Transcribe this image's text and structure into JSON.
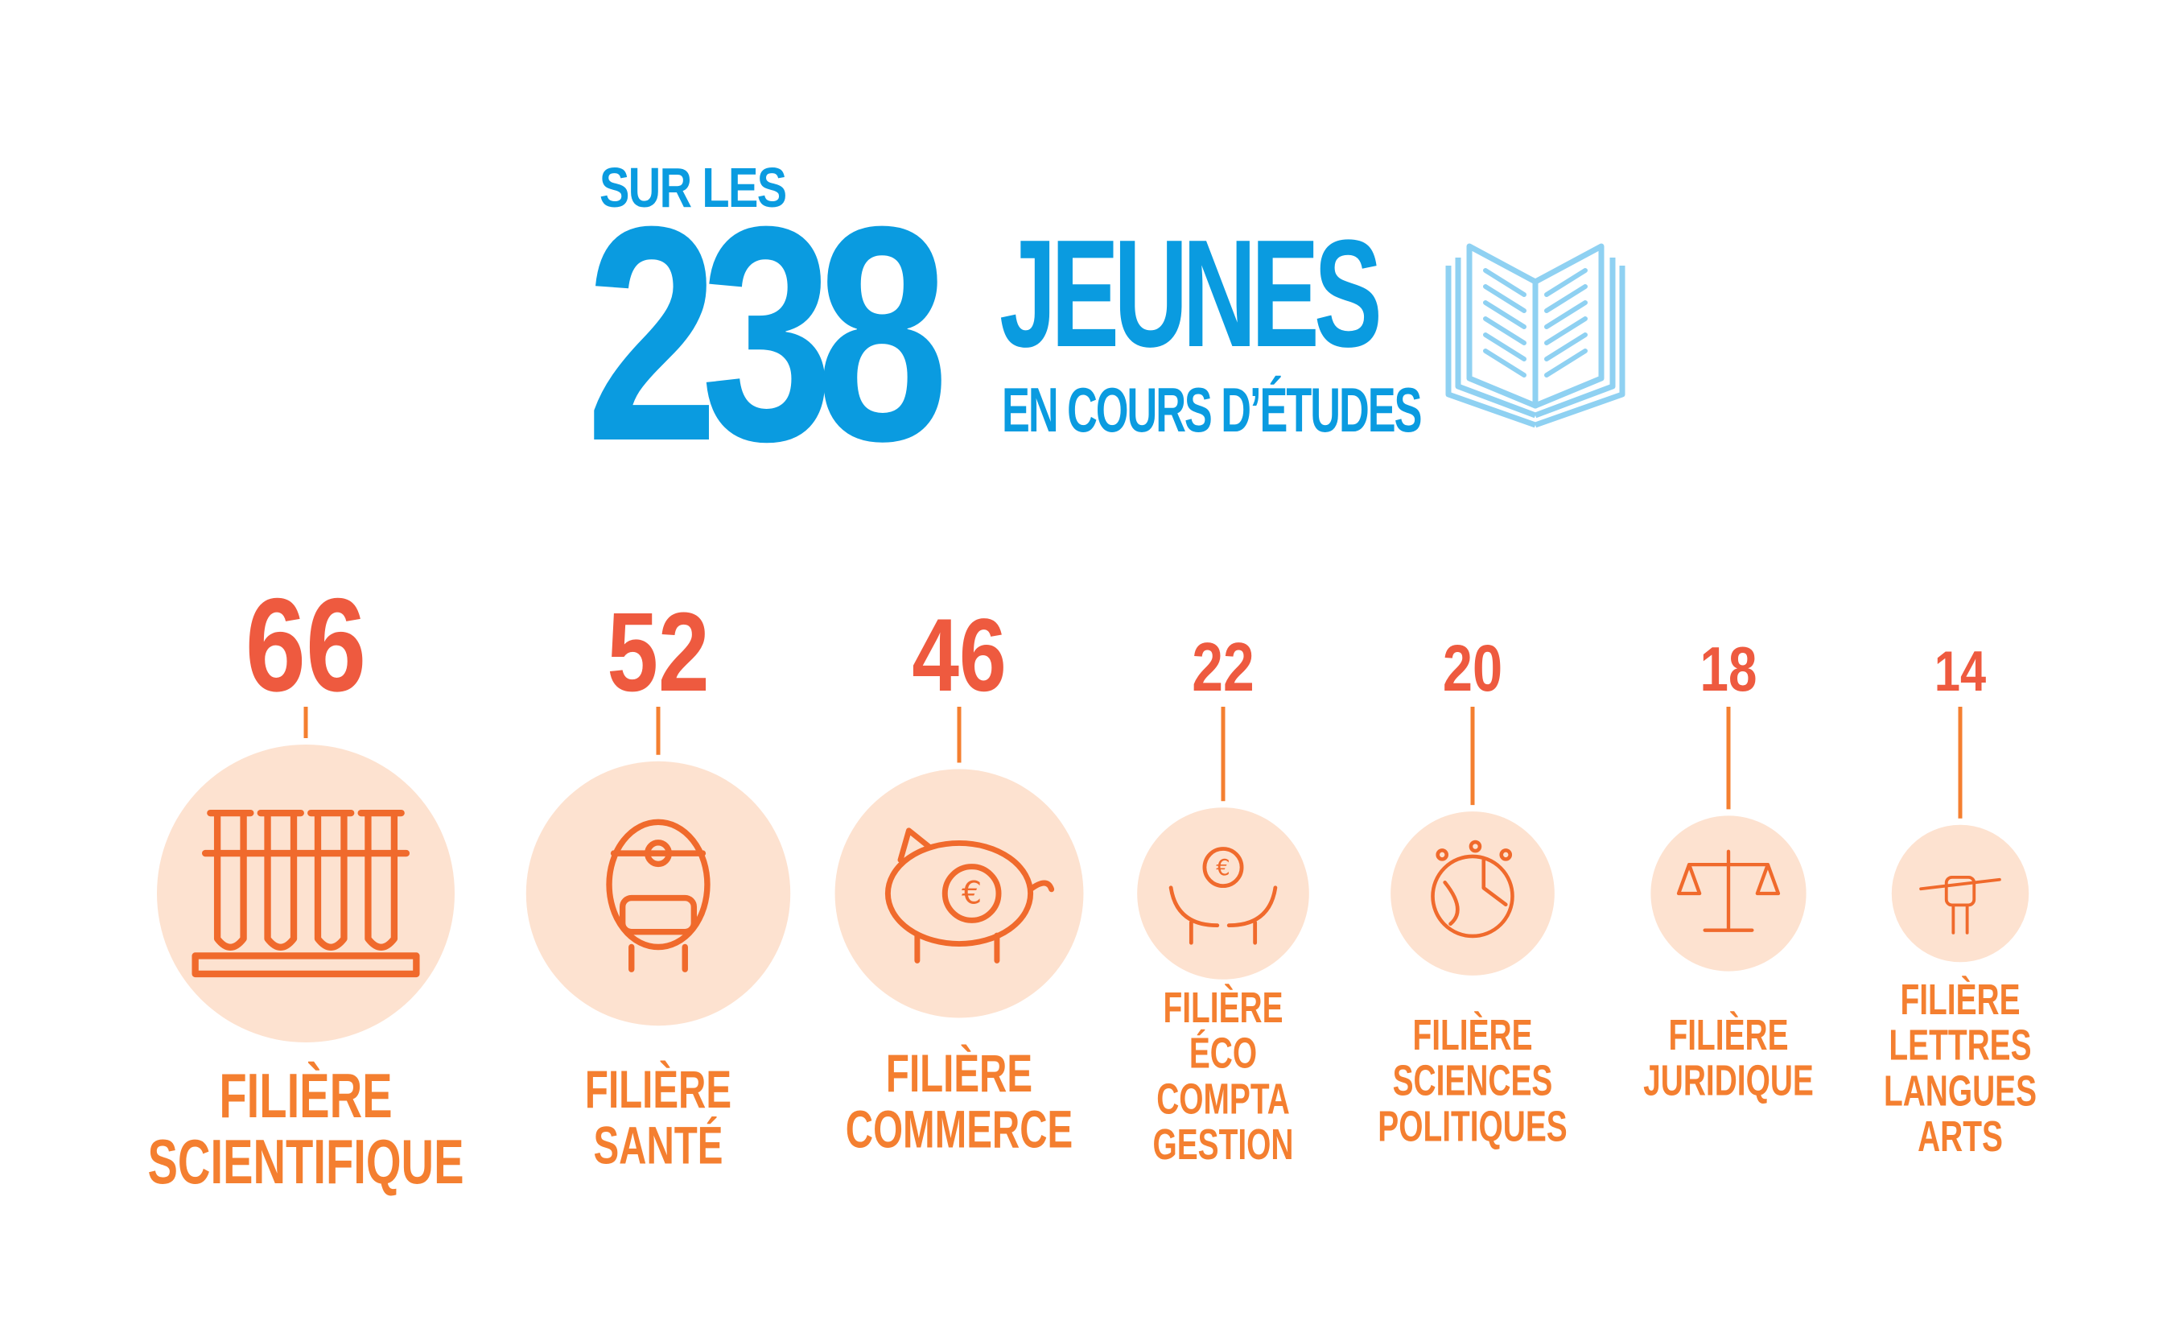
{
  "header": {
    "prefix": "SUR LES",
    "total": "238",
    "noun": "JEUNES",
    "subtitle": "EN COURS D’ÉTUDES",
    "icon": "open-book-icon"
  },
  "colors": {
    "accent_blue": "#0a9be0",
    "book_blue": "#8fd1f2",
    "value_red": "#ee5a3f",
    "label_orange": "#f47f30",
    "circle_fill": "#fde2d0",
    "icon_orange": "#f06a2c"
  },
  "chart_data": {
    "type": "bubble",
    "title": "",
    "categories": [
      {
        "value": 66,
        "label_lines": [
          "FILIÈRE",
          "SCIENTIFIQUE"
        ],
        "icon": "test-tubes-icon"
      },
      {
        "value": 52,
        "label_lines": [
          "FILIÈRE",
          "SANTÉ"
        ],
        "icon": "doctor-icon"
      },
      {
        "value": 46,
        "label_lines": [
          "FILIÈRE",
          "COMMERCE"
        ],
        "icon": "piggy-bank-icon"
      },
      {
        "value": 22,
        "label_lines": [
          "FILIÈRE",
          "ÉCO",
          "COMPTA",
          "GESTION"
        ],
        "icon": "hands-euro-icon"
      },
      {
        "value": 20,
        "label_lines": [
          "FILIÈRE",
          "SCIENCES",
          "POLITIQUES"
        ],
        "icon": "globe-network-icon"
      },
      {
        "value": 18,
        "label_lines": [
          "FILIÈRE",
          "JURIDIQUE"
        ],
        "icon": "scales-icon"
      },
      {
        "value": 14,
        "label_lines": [
          "FILIÈRE",
          "LETTRES",
          "LANGUES",
          "ARTS"
        ],
        "icon": "hand-pen-icon"
      }
    ]
  }
}
